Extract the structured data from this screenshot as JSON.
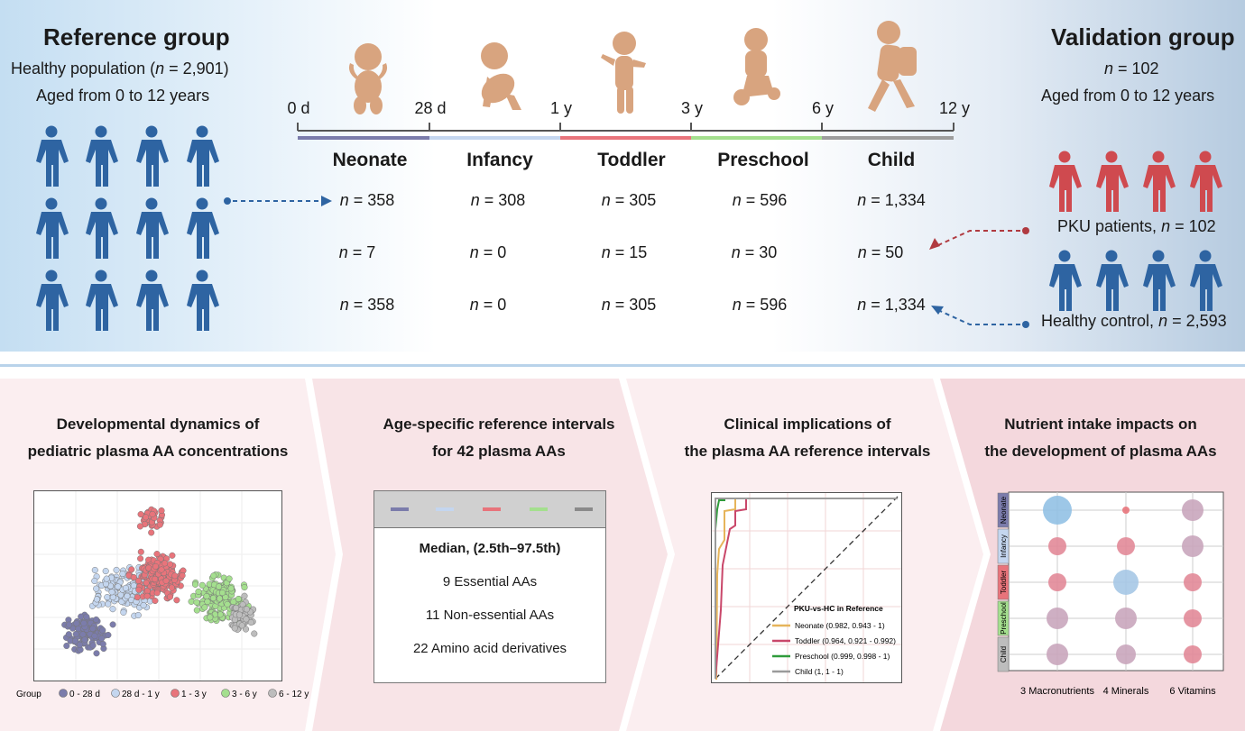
{
  "reference": {
    "title": "Reference group",
    "line1_pre": "Healthy population (",
    "line1_n": "n",
    "line1_post": " = 2,901)",
    "line2": "Aged from 0 to 12 years"
  },
  "validation": {
    "title": "Validation group",
    "n_label": "n",
    "n_value": " = 102",
    "aged": "Aged from 0 to 12 years",
    "pku_pre": "PKU patients, ",
    "pku_n": "n",
    "pku_post": " = 102",
    "hc_pre": "Healthy control, ",
    "hc_n": "n",
    "hc_post": " = 2,593"
  },
  "timeline": {
    "ticks": [
      "0 d",
      "28 d",
      "1 y",
      "3 y",
      "6 y",
      "12 y"
    ],
    "stages": [
      "Neonate",
      "Infancy",
      "Toddler",
      "Preschool",
      "Child"
    ],
    "stage_colors": [
      "#7b7cab",
      "#c4d6ef",
      "#e8747b",
      "#a4df8e",
      "#9d9d9d"
    ],
    "n_symbol": "n",
    "rows": [
      [
        " = 358",
        " = 308",
        " = 305",
        " = 596",
        " = 1,334"
      ],
      [
        " = 7",
        " = 0",
        " = 15",
        " = 30",
        " = 50"
      ],
      [
        " = 358",
        " = 0",
        " = 305",
        " = 596",
        " = 1,334"
      ]
    ]
  },
  "colors": {
    "healthy": "#2e64a2",
    "pku": "#cf4a4f",
    "figure": "#d8a47f",
    "panel_bg": "#fbeef0"
  },
  "panels": {
    "p1": {
      "title_l1": "Developmental dynamics of",
      "title_l2": "pediatric plasma AA concentrations"
    },
    "p2": {
      "title_l1": "Age-specific reference intervals",
      "title_l2": "for 42 plasma AAs",
      "median": "Median, (2.5th–97.5th)",
      "items": [
        "9 Essential AAs",
        "11 Non-essential AAs",
        "22 Amino acid derivatives"
      ]
    },
    "p3": {
      "title_l1": "Clinical implications of",
      "title_l2": "the plasma AA reference intervals"
    },
    "p4": {
      "title_l1": "Nutrient intake impacts on",
      "title_l2": "the development of plasma AAs"
    }
  },
  "chart_data": [
    {
      "type": "scatter",
      "title": "",
      "legend_title": "Group",
      "legend": [
        "0 - 28 d",
        "28 d - 1 y",
        "1 - 3 y",
        "3 - 6 y",
        "6 - 12 y"
      ],
      "colors": [
        "#7b7cab",
        "#c4d6ef",
        "#e8747b",
        "#a4df8e",
        "#bdbdbd"
      ]
    },
    {
      "type": "line",
      "legend_title": "PKU-vs-HC in Reference",
      "series": [
        {
          "name": "Neonate (0.982, 0.943 - 1)",
          "color": "#e6b45a"
        },
        {
          "name": "Toddler (0.964, 0.921 - 0.992)",
          "color": "#c9476a"
        },
        {
          "name": "Preschool (0.999, 0.998 - 1)",
          "color": "#2f9b3b"
        },
        {
          "name": "Child (1, 1 - 1)",
          "color": "#9a9a9a"
        }
      ]
    },
    {
      "type": "scatter",
      "rows": [
        "Neonate",
        "Infancy",
        "Toddler",
        "Preschool",
        "Child"
      ],
      "row_colors": [
        "#7b7cab",
        "#c4d6ef",
        "#e8747b",
        "#a4df8e",
        "#bdbdbd"
      ],
      "columns": [
        "3 Macronutrients",
        "4 Minerals",
        "6 Vitamins"
      ]
    }
  ]
}
